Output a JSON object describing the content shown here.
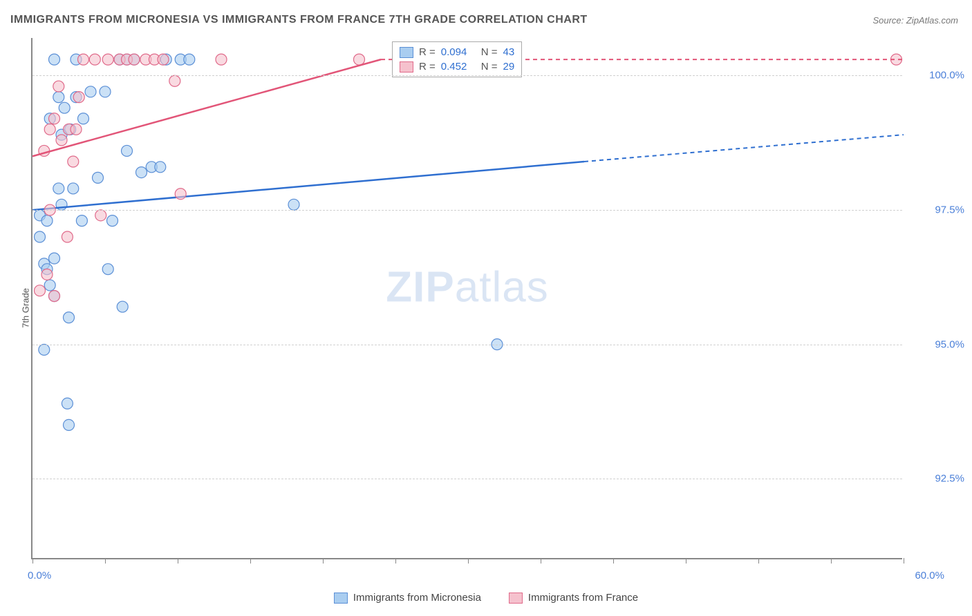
{
  "title": "IMMIGRANTS FROM MICRONESIA VS IMMIGRANTS FROM FRANCE 7TH GRADE CORRELATION CHART",
  "source": "Source: ZipAtlas.com",
  "y_axis_label": "7th Grade",
  "watermark_bold": "ZIP",
  "watermark_rest": "atlas",
  "chart": {
    "type": "scatter",
    "xlim": [
      0,
      60
    ],
    "ylim": [
      91,
      100.7
    ],
    "x_min_label": "0.0%",
    "x_max_label": "60.0%",
    "x_ticks": [
      0,
      5,
      10,
      15,
      20,
      25,
      30,
      35,
      40,
      45,
      50,
      55,
      60
    ],
    "y_gridlines": [
      92.5,
      95.0,
      97.5,
      100.0
    ],
    "y_tick_labels": [
      "92.5%",
      "95.0%",
      "97.5%",
      "100.0%"
    ],
    "background_color": "#ffffff",
    "grid_color": "#d0d0d0",
    "axis_color": "#888888",
    "series": [
      {
        "name": "Immigrants from Micronesia",
        "marker_color": "#a9cdf0",
        "marker_stroke": "#5b8fd6",
        "line_color": "#2f6fd0",
        "r_value": "0.094",
        "n_value": "43",
        "trend": {
          "x1": 0,
          "y1": 97.5,
          "x2": 38,
          "y2": 98.4,
          "dash_to_x": 60,
          "dash_to_y": 98.9
        },
        "points": [
          {
            "x": 0.5,
            "y": 97.4
          },
          {
            "x": 0.5,
            "y": 97.0
          },
          {
            "x": 0.8,
            "y": 94.9
          },
          {
            "x": 0.8,
            "y": 96.5
          },
          {
            "x": 1.0,
            "y": 96.4
          },
          {
            "x": 1.0,
            "y": 97.3
          },
          {
            "x": 1.2,
            "y": 96.1
          },
          {
            "x": 1.2,
            "y": 99.2
          },
          {
            "x": 1.5,
            "y": 100.3
          },
          {
            "x": 1.5,
            "y": 96.6
          },
          {
            "x": 1.5,
            "y": 95.9
          },
          {
            "x": 1.8,
            "y": 99.6
          },
          {
            "x": 1.8,
            "y": 97.9
          },
          {
            "x": 2.0,
            "y": 98.9
          },
          {
            "x": 2.0,
            "y": 97.6
          },
          {
            "x": 2.2,
            "y": 99.4
          },
          {
            "x": 2.4,
            "y": 93.9
          },
          {
            "x": 2.5,
            "y": 95.5
          },
          {
            "x": 2.5,
            "y": 93.5
          },
          {
            "x": 2.6,
            "y": 99.0
          },
          {
            "x": 2.8,
            "y": 97.9
          },
          {
            "x": 3.0,
            "y": 100.3
          },
          {
            "x": 3.0,
            "y": 99.6
          },
          {
            "x": 3.4,
            "y": 97.3
          },
          {
            "x": 3.5,
            "y": 99.2
          },
          {
            "x": 4.0,
            "y": 99.7
          },
          {
            "x": 4.5,
            "y": 98.1
          },
          {
            "x": 5.0,
            "y": 99.7
          },
          {
            "x": 5.2,
            "y": 96.4
          },
          {
            "x": 5.5,
            "y": 97.3
          },
          {
            "x": 6.0,
            "y": 100.3
          },
          {
            "x": 6.2,
            "y": 95.7
          },
          {
            "x": 6.5,
            "y": 98.6
          },
          {
            "x": 7.0,
            "y": 100.3
          },
          {
            "x": 7.5,
            "y": 98.2
          },
          {
            "x": 8.2,
            "y": 98.3
          },
          {
            "x": 8.8,
            "y": 98.3
          },
          {
            "x": 9.2,
            "y": 100.3
          },
          {
            "x": 10.2,
            "y": 100.3
          },
          {
            "x": 10.8,
            "y": 100.3
          },
          {
            "x": 18.0,
            "y": 97.6
          },
          {
            "x": 32.0,
            "y": 95.0
          },
          {
            "x": 6.5,
            "y": 100.3
          }
        ]
      },
      {
        "name": "Immigrants from France",
        "marker_color": "#f5c1cd",
        "marker_stroke": "#e06a8a",
        "line_color": "#e25578",
        "r_value": "0.452",
        "n_value": "29",
        "trend": {
          "x1": 0,
          "y1": 98.5,
          "x2": 24,
          "y2": 100.3,
          "dash_to_x": 60,
          "dash_to_y": 100.3
        },
        "points": [
          {
            "x": 0.5,
            "y": 96.0
          },
          {
            "x": 0.8,
            "y": 98.6
          },
          {
            "x": 1.0,
            "y": 96.3
          },
          {
            "x": 1.2,
            "y": 97.5
          },
          {
            "x": 1.2,
            "y": 99.0
          },
          {
            "x": 1.5,
            "y": 99.2
          },
          {
            "x": 1.5,
            "y": 95.9
          },
          {
            "x": 1.8,
            "y": 99.8
          },
          {
            "x": 2.0,
            "y": 98.8
          },
          {
            "x": 2.4,
            "y": 97.0
          },
          {
            "x": 2.5,
            "y": 99.0
          },
          {
            "x": 2.8,
            "y": 98.4
          },
          {
            "x": 3.0,
            "y": 99.0
          },
          {
            "x": 3.2,
            "y": 99.6
          },
          {
            "x": 3.5,
            "y": 100.3
          },
          {
            "x": 4.3,
            "y": 100.3
          },
          {
            "x": 4.7,
            "y": 97.4
          },
          {
            "x": 5.2,
            "y": 100.3
          },
          {
            "x": 6.0,
            "y": 100.3
          },
          {
            "x": 6.5,
            "y": 100.3
          },
          {
            "x": 7.0,
            "y": 100.3
          },
          {
            "x": 7.8,
            "y": 100.3
          },
          {
            "x": 8.4,
            "y": 100.3
          },
          {
            "x": 9.0,
            "y": 100.3
          },
          {
            "x": 9.8,
            "y": 99.9
          },
          {
            "x": 10.2,
            "y": 97.8
          },
          {
            "x": 13.0,
            "y": 100.3
          },
          {
            "x": 22.5,
            "y": 100.3
          },
          {
            "x": 59.5,
            "y": 100.3
          }
        ]
      }
    ],
    "legend_box": {
      "r_label": "R =",
      "n_label": "N =",
      "value_color": "#2f6fd0"
    }
  },
  "bottom_legend": {
    "items": [
      {
        "label": "Immigrants from Micronesia",
        "fill": "#a9cdf0",
        "stroke": "#5b8fd6"
      },
      {
        "label": "Immigrants from France",
        "fill": "#f5c1cd",
        "stroke": "#e06a8a"
      }
    ]
  }
}
